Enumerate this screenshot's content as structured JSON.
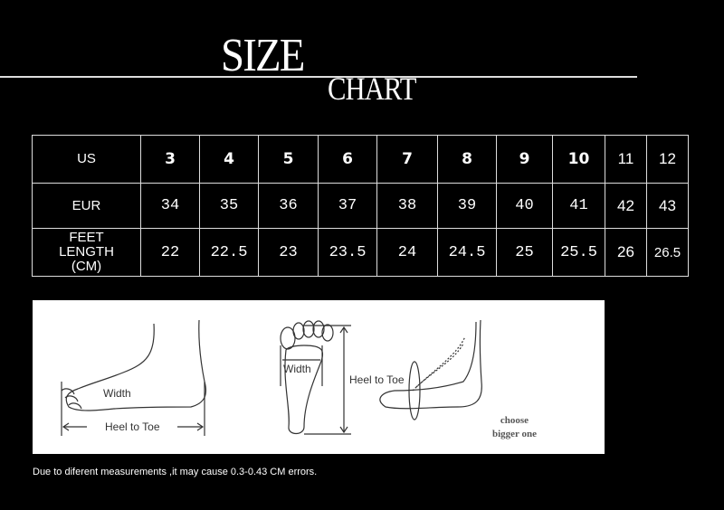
{
  "title": {
    "size": "SIZE",
    "chart": "CHART"
  },
  "table": {
    "row_headers": [
      "US",
      "EUR",
      "FEET LENGTH (CM)"
    ],
    "feet_header_lines": [
      "FEET",
      "LENGTH",
      "(CM)"
    ],
    "us": [
      "3",
      "4",
      "5",
      "6",
      "7",
      "8",
      "9",
      "10",
      "11",
      "12"
    ],
    "eur": [
      "34",
      "35",
      "36",
      "37",
      "38",
      "39",
      "40",
      "41",
      "42",
      "43"
    ],
    "feet_length_cm": [
      "22",
      "22.5",
      "23",
      "23.5",
      "24",
      "24.5",
      "25",
      "25.5",
      "26",
      "26.5"
    ]
  },
  "illustration": {
    "side_width": "Width",
    "side_heel_to_toe": "Heel to Toe",
    "sole_width": "Width",
    "sole_heel_to_toe": "Heel to Toe",
    "choose_line1": "choose",
    "choose_line2": "bigger one"
  },
  "note": "Due to diferent measurements ,it may cause 0.3-0.43 CM errors."
}
